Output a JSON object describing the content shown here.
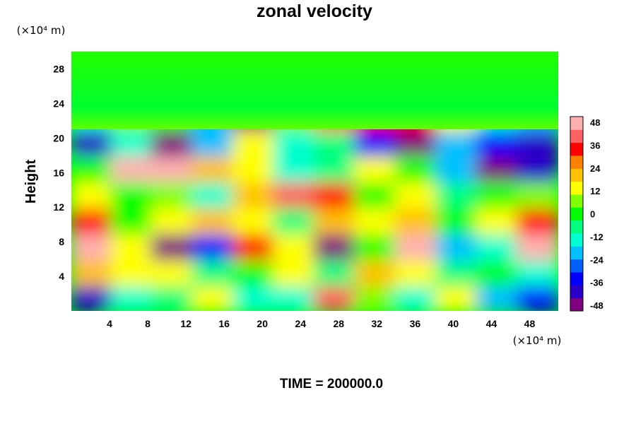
{
  "chart_data": {
    "type": "heatmap",
    "title": "zonal velocity",
    "ylabel": "Height",
    "xlabel": "",
    "x_unit_label": "(×10⁴ m)",
    "y_unit_label": "(×10⁴ m)",
    "x_ticks": [
      "4",
      "8",
      "12",
      "16",
      "20",
      "24",
      "28",
      "32",
      "36",
      "40",
      "44",
      "48"
    ],
    "y_ticks": [
      "4",
      "8",
      "12",
      "16",
      "20",
      "24",
      "28"
    ],
    "xlim": [
      0,
      51
    ],
    "ylim": [
      0,
      30
    ],
    "colorbar": {
      "ticks": [
        "48",
        "36",
        "24",
        "12",
        "0",
        "-12",
        "-24",
        "-36",
        "-48"
      ],
      "range": [
        -48,
        48
      ],
      "colors": [
        "#800080",
        "#2a00c8",
        "#0000ff",
        "#0060ff",
        "#00c0ff",
        "#00ffd0",
        "#00ff80",
        "#00ff00",
        "#80ff00",
        "#ffff00",
        "#ffc000",
        "#ff8000",
        "#ff0000",
        "#ff6060",
        "#ffb0b0"
      ]
    },
    "values": [
      [
        -40,
        -10,
        -5,
        10,
        -15,
        -10,
        40,
        5,
        -10,
        10,
        -20,
        -30
      ],
      [
        20,
        15,
        10,
        -5,
        0,
        10,
        -5,
        20,
        10,
        -5,
        0,
        -10
      ],
      [
        50,
        10,
        -48,
        -30,
        30,
        10,
        -48,
        0,
        45,
        -20,
        -10,
        50
      ],
      [
        30,
        0,
        10,
        20,
        15,
        -5,
        20,
        10,
        20,
        0,
        10,
        30
      ],
      [
        10,
        0,
        5,
        -10,
        20,
        40,
        35,
        0,
        10,
        -5,
        0,
        5
      ],
      [
        0,
        45,
        50,
        20,
        10,
        -10,
        -5,
        10,
        0,
        -20,
        -48,
        -40
      ],
      [
        -40,
        -10,
        -48,
        -20,
        10,
        -10,
        -5,
        -30,
        -48,
        -20,
        -30,
        -40
      ],
      [
        -10,
        5,
        0,
        -20,
        -48,
        5,
        40,
        35,
        30,
        10,
        -10,
        -20
      ],
      [
        0,
        0,
        5,
        5,
        5,
        5,
        5,
        5,
        5,
        5,
        5,
        5
      ],
      [
        0,
        0,
        0,
        0,
        0,
        0,
        0,
        0,
        0,
        0,
        0,
        0
      ]
    ],
    "time_label": "TIME = 200000.0"
  }
}
